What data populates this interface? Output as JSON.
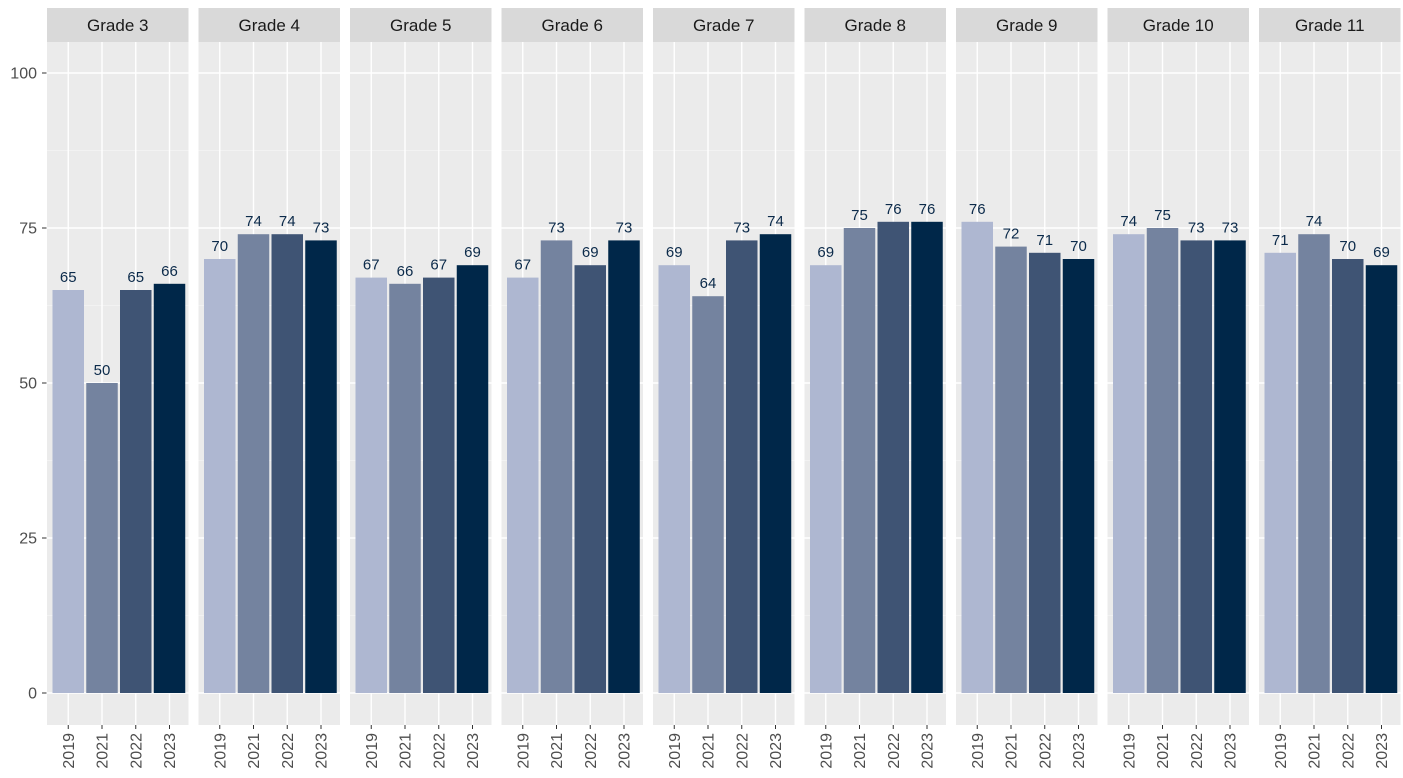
{
  "chart_data": {
    "type": "bar",
    "facets": [
      {
        "title": "Grade 3",
        "values": [
          65,
          50,
          65,
          66
        ]
      },
      {
        "title": "Grade 4",
        "values": [
          70,
          74,
          74,
          73
        ]
      },
      {
        "title": "Grade 5",
        "values": [
          67,
          66,
          67,
          69
        ]
      },
      {
        "title": "Grade 6",
        "values": [
          67,
          73,
          69,
          73
        ]
      },
      {
        "title": "Grade 7",
        "values": [
          69,
          64,
          73,
          74
        ]
      },
      {
        "title": "Grade 8",
        "values": [
          69,
          75,
          76,
          76
        ]
      },
      {
        "title": "Grade 9",
        "values": [
          76,
          72,
          71,
          70
        ]
      },
      {
        "title": "Grade 10",
        "values": [
          74,
          75,
          73,
          73
        ]
      },
      {
        "title": "Grade 11",
        "values": [
          71,
          74,
          70,
          69
        ]
      }
    ],
    "categories": [
      "2019",
      "2021",
      "2022",
      "2023"
    ],
    "colors": [
      "#aeb7d1",
      "#74839f",
      "#3f5474",
      "#002749"
    ],
    "ylim": [
      0,
      100
    ],
    "yticks": [
      0,
      25,
      50,
      75,
      100
    ],
    "title": "",
    "xlabel": "",
    "ylabel": "",
    "grid": true,
    "legend": "none"
  }
}
